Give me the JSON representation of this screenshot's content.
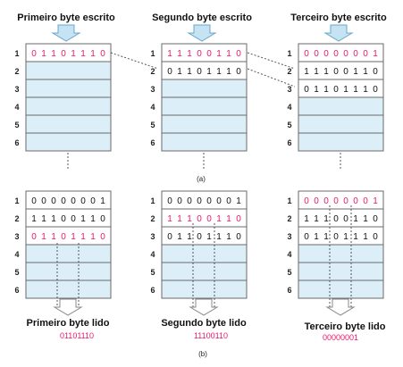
{
  "colors": {
    "red": "#e8186c",
    "black": "#111111",
    "cell_fill": "#dceef7",
    "arrow_fill": "#c5e3f3",
    "arrow_stroke": "#6aa7c8",
    "border": "#6a6a6a"
  },
  "row_numbers": [
    "1",
    "2",
    "3",
    "4",
    "5",
    "6"
  ],
  "part_a": {
    "caption": "(a)",
    "stacks": [
      {
        "title": "Primeiro byte escrito",
        "rows": [
          {
            "bits": "01101110",
            "color": "red"
          }
        ]
      },
      {
        "title": "Segundo byte escrito",
        "rows": [
          {
            "bits": "11100110",
            "color": "red"
          },
          {
            "bits": "01101110",
            "color": "black"
          }
        ]
      },
      {
        "title": "Terceiro byte escrito",
        "rows": [
          {
            "bits": "00000001",
            "color": "red"
          },
          {
            "bits": "11100110",
            "color": "black"
          },
          {
            "bits": "01101110",
            "color": "black"
          }
        ]
      }
    ]
  },
  "part_b": {
    "caption": "(b)",
    "stacks": [
      {
        "read_label": "Primeiro  byte lido",
        "value": "01101110",
        "rows": [
          {
            "bits": "00000001",
            "color": "black"
          },
          {
            "bits": "11100110",
            "color": "black"
          },
          {
            "bits": "01101110",
            "color": "red"
          }
        ]
      },
      {
        "read_label": "Segundo byte lido",
        "value": "11100110",
        "rows": [
          {
            "bits": "00000001",
            "color": "black"
          },
          {
            "bits": "11100110",
            "color": "red"
          },
          {
            "bits": "01101110",
            "color": "black"
          }
        ]
      },
      {
        "read_label": "Terceiro byte lido",
        "value": "00000001",
        "rows": [
          {
            "bits": "00000001",
            "color": "red"
          },
          {
            "bits": "11100110",
            "color": "black"
          },
          {
            "bits": "01101110",
            "color": "black"
          }
        ]
      }
    ]
  }
}
